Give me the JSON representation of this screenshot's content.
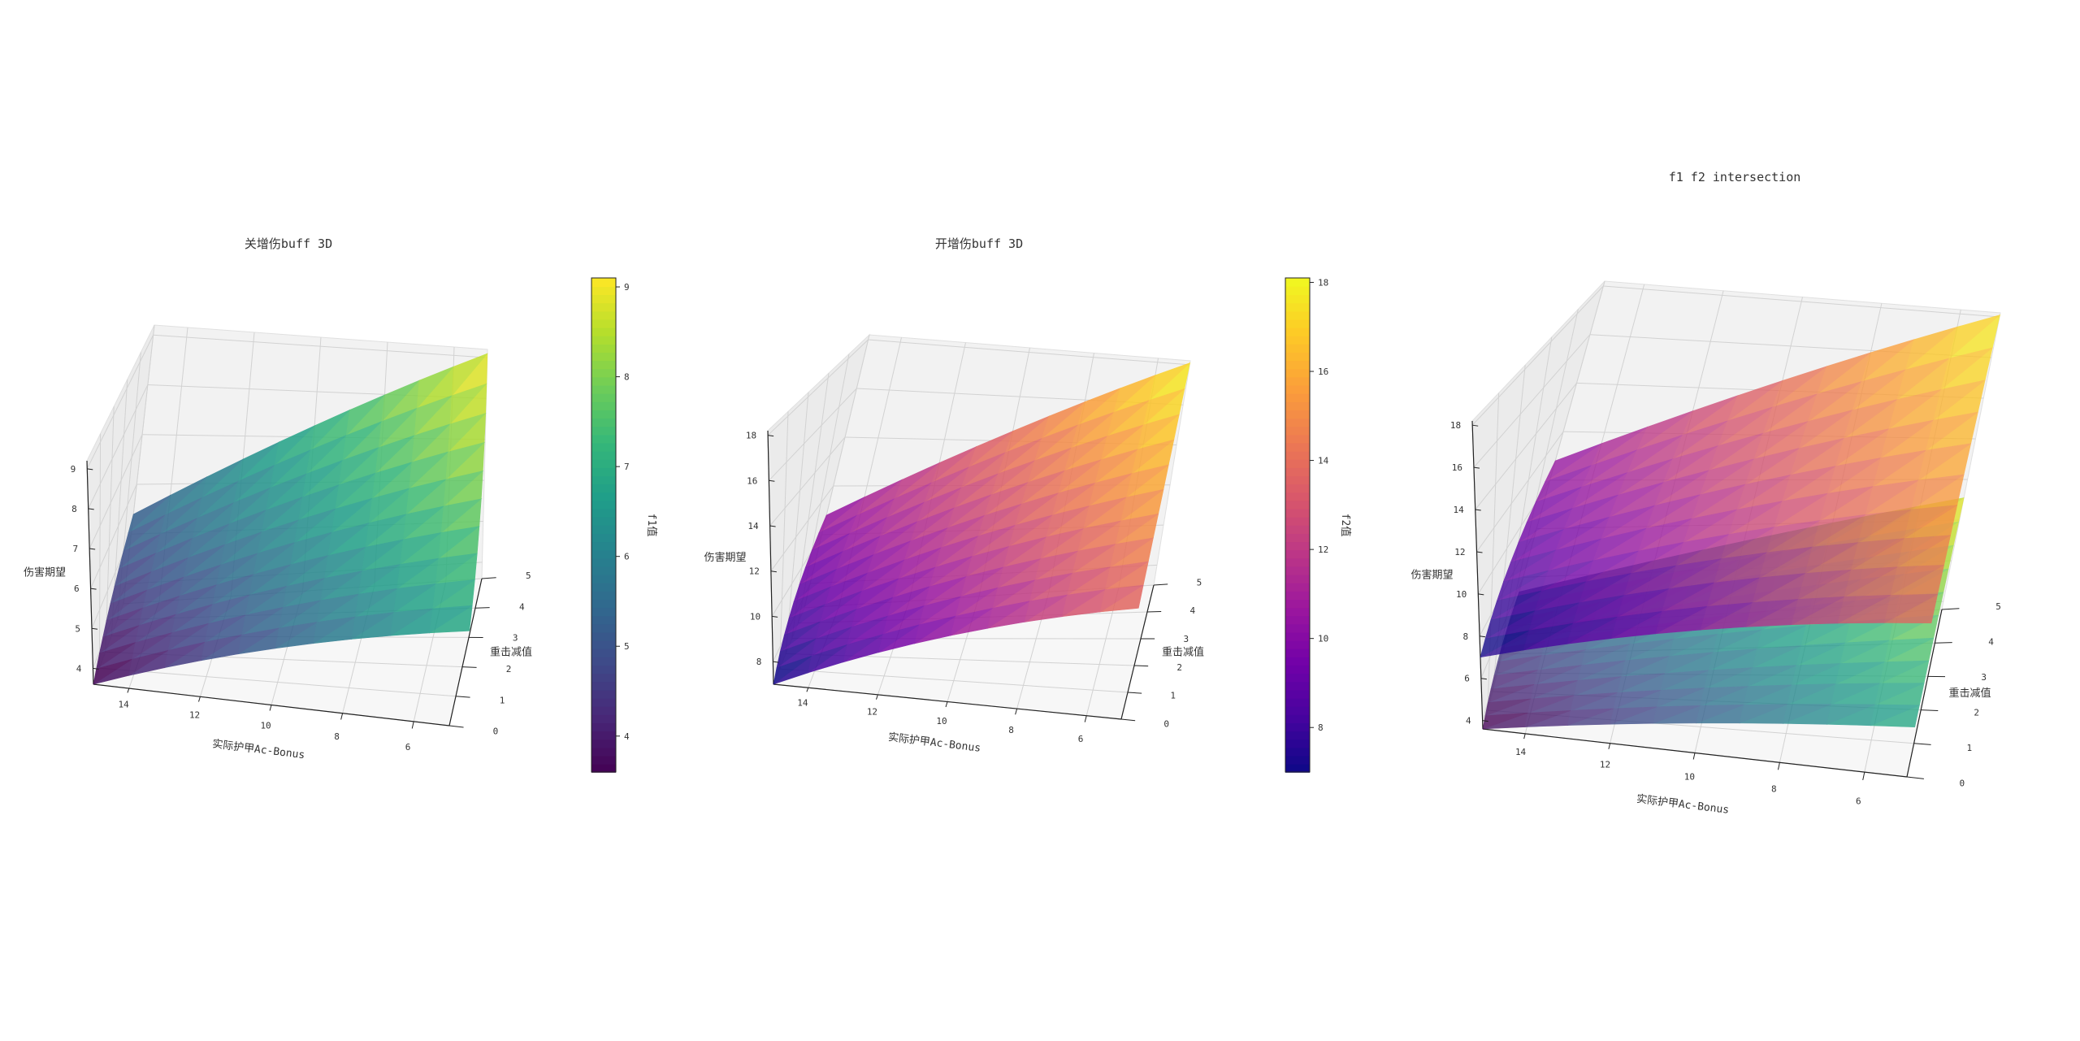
{
  "chart_data": [
    {
      "type": "surface3d",
      "title": "关增伤buff 3D",
      "xlabel": "实际护甲Ac-Bonus",
      "ylabel": "重击减值",
      "zlabel": "伤害期望",
      "colorbar_label": "f1值",
      "colormap": "viridis",
      "x_ticks": [
        14,
        12,
        10,
        8,
        6
      ],
      "y_ticks": [
        0,
        1,
        2,
        3,
        4,
        5
      ],
      "z_ticks": [
        4,
        5,
        6,
        7,
        8,
        9
      ],
      "colorbar_ticks": [
        4,
        5,
        6,
        7,
        8,
        9
      ],
      "xlim": [
        15,
        5
      ],
      "ylim": [
        0,
        5
      ],
      "zlim": [
        3.6,
        9.2
      ],
      "corners": {
        "x15_y0": 3.6,
        "x5_y0": 6.9,
        "x15_y5": 5.4,
        "x5_y5": 9.1
      }
    },
    {
      "type": "surface3d",
      "title": "开增伤buff 3D",
      "xlabel": "实际护甲Ac-Bonus",
      "ylabel": "重击减值",
      "zlabel": "伤害期望",
      "colorbar_label": "f2值",
      "colormap": "plasma",
      "x_ticks": [
        14,
        12,
        10,
        8,
        6
      ],
      "y_ticks": [
        0,
        1,
        2,
        3,
        4,
        5
      ],
      "z_ticks": [
        8,
        10,
        12,
        14,
        16,
        18
      ],
      "colorbar_ticks": [
        8,
        10,
        12,
        14,
        16,
        18
      ],
      "xlim": [
        15,
        5
      ],
      "ylim": [
        0,
        5
      ],
      "zlim": [
        7,
        18.2
      ],
      "corners": {
        "x15_y0": 7,
        "x5_y0": 13.8,
        "x15_y5": 10.8,
        "x5_y5": 18.1
      }
    },
    {
      "type": "surface3d",
      "title": "f1 f2 intersection",
      "xlabel": "实际护甲Ac-Bonus",
      "ylabel": "重击减值",
      "zlabel": "伤害期望",
      "x_ticks": [
        14,
        12,
        10,
        8,
        6
      ],
      "y_ticks": [
        0,
        1,
        2,
        3,
        4,
        5
      ],
      "z_ticks": [
        4,
        6,
        8,
        10,
        12,
        14,
        16,
        18
      ],
      "xlim": [
        15,
        5
      ],
      "ylim": [
        0,
        5
      ],
      "zlim": [
        3.6,
        18.2
      ],
      "series": [
        {
          "name": "f1",
          "colormap": "viridis",
          "corners": {
            "x15_y0": 3.6,
            "x5_y0": 6.9,
            "x15_y5": 5.4,
            "x5_y5": 9.1
          }
        },
        {
          "name": "f2",
          "colormap": "plasma",
          "corners": {
            "x15_y0": 7,
            "x5_y0": 13.8,
            "x15_y5": 10.8,
            "x5_y5": 18.1
          }
        }
      ]
    }
  ]
}
